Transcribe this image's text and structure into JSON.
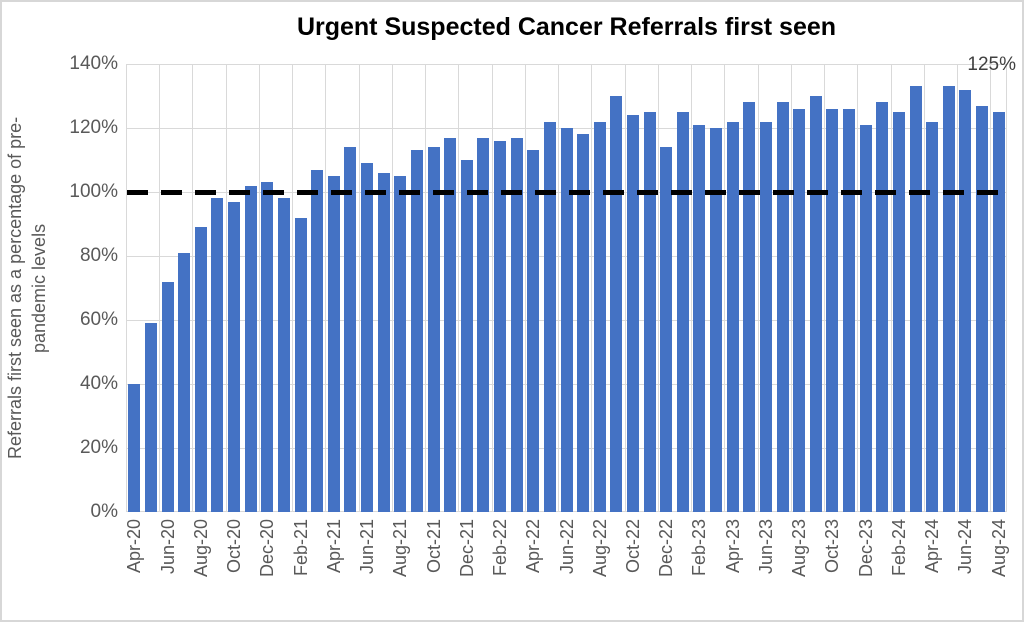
{
  "chart_data": {
    "type": "bar",
    "title": "Urgent Suspected Cancer Referrals first seen",
    "ylabel": "Referrals first seen as a percentage of pre-pandemic levels",
    "ylabel_lines": [
      "Referrals first seen as a percentage of pre-",
      "pandemic levels"
    ],
    "categories": [
      "Apr-20",
      "May-20",
      "Jun-20",
      "Jul-20",
      "Aug-20",
      "Sep-20",
      "Oct-20",
      "Nov-20",
      "Dec-20",
      "Jan-21",
      "Feb-21",
      "Mar-21",
      "Apr-21",
      "May-21",
      "Jun-21",
      "Jul-21",
      "Aug-21",
      "Sep-21",
      "Oct-21",
      "Nov-21",
      "Dec-21",
      "Jan-22",
      "Feb-22",
      "Mar-22",
      "Apr-22",
      "May-22",
      "Jun-22",
      "Jul-22",
      "Aug-22",
      "Sep-22",
      "Oct-22",
      "Nov-22",
      "Dec-22",
      "Jan-23",
      "Feb-23",
      "Mar-23",
      "Apr-23",
      "May-23",
      "Jun-23",
      "Jul-23",
      "Aug-23",
      "Sep-23",
      "Oct-23",
      "Nov-23",
      "Dec-23",
      "Jan-24",
      "Feb-24",
      "Mar-24",
      "Apr-24",
      "May-24",
      "Jun-24",
      "Jul-24",
      "Aug-24"
    ],
    "values": [
      40,
      59,
      72,
      81,
      89,
      98,
      97,
      102,
      103,
      98,
      92,
      107,
      105,
      114,
      109,
      106,
      105,
      113,
      114,
      117,
      110,
      117,
      116,
      117,
      113,
      122,
      120,
      118,
      122,
      130,
      124,
      125,
      114,
      125,
      121,
      120,
      122,
      128,
      122,
      128,
      126,
      130,
      126,
      126,
      121,
      128,
      125,
      133,
      122,
      133,
      132,
      127,
      125
    ],
    "x_tick_labels": [
      "Apr-20",
      "Jun-20",
      "Aug-20",
      "Oct-20",
      "Dec-20",
      "Feb-21",
      "Apr-21",
      "Jun-21",
      "Aug-21",
      "Oct-21",
      "Dec-21",
      "Feb-22",
      "Apr-22",
      "Jun-22",
      "Aug-22",
      "Oct-22",
      "Dec-22",
      "Feb-23",
      "Apr-23",
      "Jun-23",
      "Aug-23",
      "Oct-23",
      "Dec-23",
      "Feb-24",
      "Apr-24",
      "Jun-24",
      "Aug-24"
    ],
    "y_tick_labels": [
      "0%",
      "20%",
      "40%",
      "60%",
      "80%",
      "100%",
      "120%",
      "140%"
    ],
    "ylim": [
      0,
      140
    ],
    "y_tick_step": 20,
    "grid": true,
    "legend": "none",
    "reference_line": {
      "value": 100,
      "style": "dashed",
      "color": "#000000"
    },
    "annotation": {
      "text": "125%",
      "anchor_category": "Aug-24",
      "value": 125
    },
    "colors": {
      "bar": "#4472C4",
      "gridline": "#d9d9d9",
      "tick_label": "#595959",
      "title": "#000000",
      "annotation": "#404040",
      "border": "#d7d7d7",
      "reference_line": "#000000"
    }
  }
}
